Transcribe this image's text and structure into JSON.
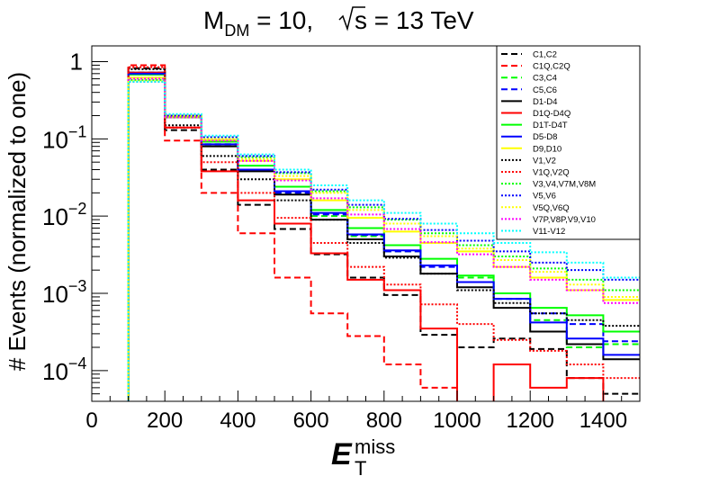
{
  "chart_data": {
    "type": "line",
    "title": {
      "prefix": "M",
      "prefix_sub": "DM",
      "value_text": " = 10,",
      "sqrt_label": "s",
      "energy_text": " = 13 TeV"
    },
    "ylabel": "# Events (normalized to one)",
    "xlabel": {
      "main": "E",
      "sub": "T",
      "sup": "miss"
    },
    "x_ticks": [
      0,
      200,
      400,
      600,
      800,
      1000,
      1200,
      1400
    ],
    "x_tick_labels": [
      "0",
      "200",
      "400",
      "600",
      "800",
      "1000",
      "1200",
      "1400"
    ],
    "xlim": [
      0,
      1500
    ],
    "ylim": [
      4e-05,
      1.6
    ],
    "y_scale": "log",
    "y_ticks": [
      {
        "value": 1,
        "base": "1",
        "exp": ""
      },
      {
        "value": 0.1,
        "base": "10",
        "exp": "−1"
      },
      {
        "value": 0.01,
        "base": "10",
        "exp": "−2"
      },
      {
        "value": 0.001,
        "base": "10",
        "exp": "−3"
      },
      {
        "value": 0.0001,
        "base": "10",
        "exp": "−4"
      }
    ],
    "bin_edges": [
      100,
      200,
      300,
      400,
      500,
      600,
      700,
      800,
      900,
      1000,
      1100,
      1200,
      1300,
      1400,
      1500
    ],
    "legend_position": "top-right",
    "series": [
      {
        "name": "C1,C2",
        "color": "#000000",
        "style": "dashed",
        "values": [
          0.82,
          0.13,
          0.04,
          0.014,
          0.0068,
          0.0032,
          0.0016,
          0.00095,
          0.00029,
          0.0002,
          0.00026,
          0.00019,
          8e-05,
          5e-05
        ]
      },
      {
        "name": "C1Q,C2Q",
        "color": "#ff0000",
        "style": "dashed",
        "values": [
          0.9,
          0.095,
          0.02,
          0.006,
          0.0016,
          0.00055,
          0.00028,
          0.00012,
          6e-05,
          3e-05,
          3e-05,
          3e-05,
          3e-05,
          3e-05
        ]
      },
      {
        "name": "C3,C4",
        "color": "#00ff00",
        "style": "dashed",
        "values": [
          0.72,
          0.19,
          0.085,
          0.04,
          0.02,
          0.01,
          0.0055,
          0.0035,
          0.0023,
          0.0016,
          0.00085,
          0.00045,
          0.0002,
          0.00022
        ]
      },
      {
        "name": "C5,C6",
        "color": "#0000ff",
        "style": "dashed",
        "values": [
          0.72,
          0.19,
          0.085,
          0.04,
          0.02,
          0.0105,
          0.0057,
          0.0035,
          0.0022,
          0.0014,
          0.00085,
          0.00055,
          0.0004,
          0.00024
        ]
      },
      {
        "name": "D1-D4",
        "color": "#000000",
        "style": "solid",
        "values": [
          0.72,
          0.19,
          0.08,
          0.038,
          0.019,
          0.009,
          0.005,
          0.003,
          0.0018,
          0.0012,
          0.00065,
          0.00032,
          0.00022,
          0.00014
        ]
      },
      {
        "name": "D1Q-D4Q",
        "color": "#ff0000",
        "style": "solid",
        "values": [
          0.72,
          0.14,
          0.038,
          0.016,
          0.008,
          0.0033,
          0.0015,
          0.0011,
          0.00035,
          3e-05,
          0.00012,
          6e-05,
          8e-05,
          3e-05
        ]
      },
      {
        "name": "D1T-D4T",
        "color": "#00ff00",
        "style": "solid",
        "values": [
          0.68,
          0.2,
          0.092,
          0.045,
          0.024,
          0.012,
          0.007,
          0.0042,
          0.0028,
          0.0017,
          0.001,
          0.00065,
          0.00052,
          0.00032
        ]
      },
      {
        "name": "D5-D8",
        "color": "#0000ff",
        "style": "solid",
        "values": [
          0.7,
          0.19,
          0.085,
          0.04,
          0.021,
          0.011,
          0.0058,
          0.0036,
          0.0023,
          0.0014,
          0.00085,
          0.00042,
          0.00026,
          0.00016
        ]
      },
      {
        "name": "D9,D10",
        "color": "#ffff00",
        "style": "solid",
        "values": [
          0.62,
          0.2,
          0.097,
          0.052,
          0.03,
          0.016,
          0.0095,
          0.0063,
          0.0045,
          0.0035,
          0.0022,
          0.0016,
          0.0011,
          0.00082
        ]
      },
      {
        "name": "V1,V2",
        "color": "#000000",
        "style": "dotted",
        "values": [
          0.8,
          0.15,
          0.06,
          0.03,
          0.016,
          0.009,
          0.0045,
          0.0029,
          0.0018,
          0.0011,
          0.00075,
          0.00055,
          0.00045,
          0.00038
        ]
      },
      {
        "name": "V1Q,V2Q",
        "color": "#ff0000",
        "style": "dotted",
        "values": [
          0.85,
          0.14,
          0.05,
          0.02,
          0.0095,
          0.0045,
          0.0022,
          0.0013,
          0.00072,
          0.0004,
          0.00025,
          0.00018,
          0.00012,
          8e-05
        ]
      },
      {
        "name": "V3,V4,V7M,V8M",
        "color": "#00ff00",
        "style": "dotted",
        "values": [
          0.58,
          0.19,
          0.105,
          0.058,
          0.036,
          0.021,
          0.013,
          0.009,
          0.006,
          0.0042,
          0.003,
          0.0021,
          0.0015,
          0.0011
        ]
      },
      {
        "name": "V5,V6",
        "color": "#0000ff",
        "style": "dotted",
        "values": [
          0.55,
          0.2,
          0.105,
          0.06,
          0.037,
          0.022,
          0.014,
          0.0092,
          0.0066,
          0.0048,
          0.0035,
          0.0025,
          0.002,
          0.0015
        ]
      },
      {
        "name": "V5Q,V6Q",
        "color": "#ffff00",
        "style": "dotted",
        "values": [
          0.56,
          0.19,
          0.1,
          0.055,
          0.033,
          0.02,
          0.012,
          0.008,
          0.0055,
          0.0038,
          0.0027,
          0.0019,
          0.0013,
          0.0009
        ]
      },
      {
        "name": "V7P,V8P,V9,V10",
        "color": "#ff00ff",
        "style": "dotted",
        "values": [
          0.6,
          0.19,
          0.095,
          0.052,
          0.029,
          0.017,
          0.0105,
          0.0068,
          0.0046,
          0.0032,
          0.0022,
          0.0015,
          0.0011,
          0.00075
        ]
      },
      {
        "name": "V11-V12",
        "color": "#00ffff",
        "style": "dotted",
        "values": [
          0.55,
          0.21,
          0.11,
          0.063,
          0.04,
          0.025,
          0.016,
          0.011,
          0.008,
          0.006,
          0.0045,
          0.0034,
          0.0025,
          0.0016
        ]
      }
    ]
  }
}
